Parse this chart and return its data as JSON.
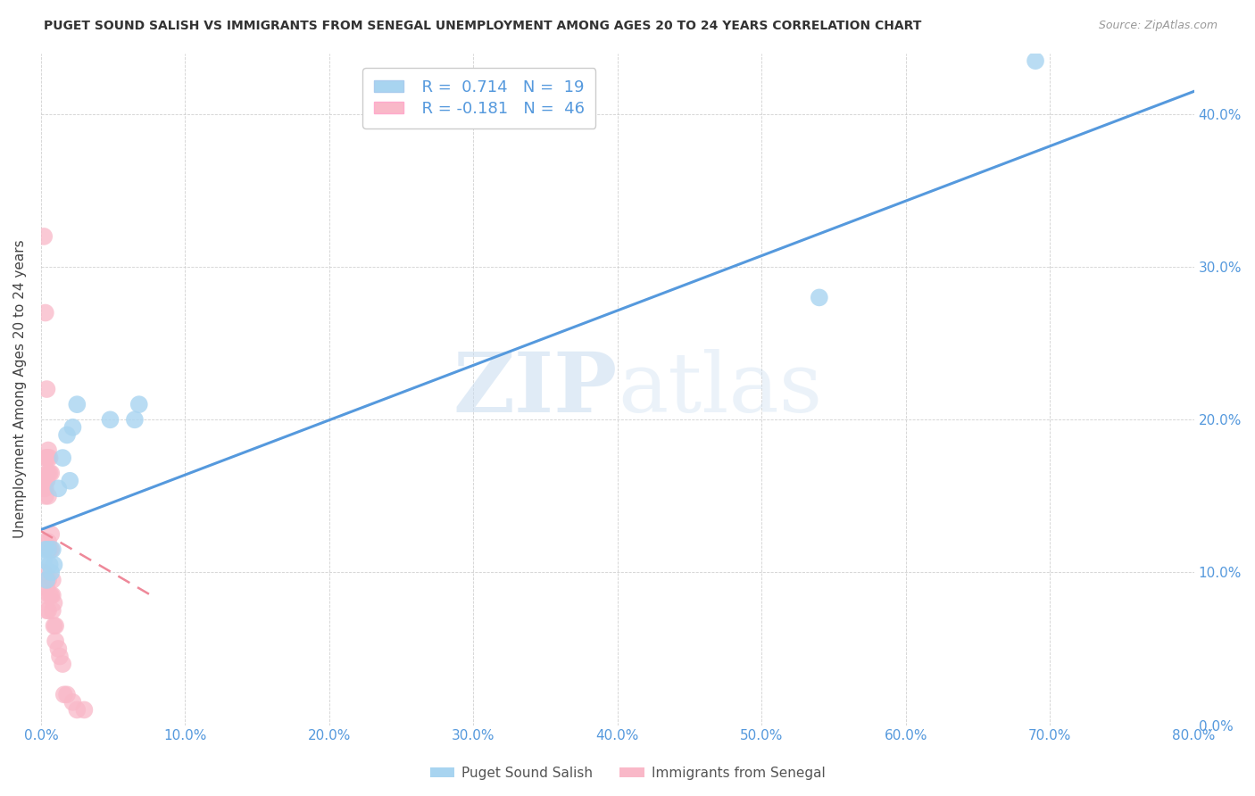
{
  "title": "PUGET SOUND SALISH VS IMMIGRANTS FROM SENEGAL UNEMPLOYMENT AMONG AGES 20 TO 24 YEARS CORRELATION CHART",
  "source": "Source: ZipAtlas.com",
  "xlabel": "",
  "ylabel": "Unemployment Among Ages 20 to 24 years",
  "legend_label1": "Puget Sound Salish",
  "legend_label2": "Immigrants from Senegal",
  "R1": 0.714,
  "N1": 19,
  "R2": -0.181,
  "N2": 46,
  "color1": "#A8D4F0",
  "color2": "#F9B8C8",
  "line_color1": "#5599DD",
  "line_color2": "#EE8899",
  "xmin": 0.0,
  "xmax": 0.8,
  "ymin": 0.0,
  "ymax": 0.44,
  "xticks": [
    0.0,
    0.1,
    0.2,
    0.3,
    0.4,
    0.5,
    0.6,
    0.7,
    0.8
  ],
  "yticks": [
    0.0,
    0.1,
    0.2,
    0.3,
    0.4
  ],
  "blue_line_x0": 0.0,
  "blue_line_y0": 0.128,
  "blue_line_x1": 0.8,
  "blue_line_y1": 0.415,
  "pink_line_x0": 0.0,
  "pink_line_y0": 0.127,
  "pink_line_x1": 0.08,
  "pink_line_y1": 0.083,
  "blue_points_x": [
    0.002,
    0.003,
    0.004,
    0.005,
    0.006,
    0.007,
    0.008,
    0.009,
    0.012,
    0.015,
    0.018,
    0.02,
    0.022,
    0.025,
    0.048,
    0.065,
    0.068,
    0.54,
    0.69
  ],
  "blue_points_y": [
    0.108,
    0.115,
    0.095,
    0.115,
    0.105,
    0.1,
    0.115,
    0.105,
    0.155,
    0.175,
    0.19,
    0.16,
    0.195,
    0.21,
    0.2,
    0.2,
    0.21,
    0.28,
    0.435
  ],
  "pink_points_x": [
    0.002,
    0.002,
    0.002,
    0.003,
    0.003,
    0.003,
    0.003,
    0.003,
    0.003,
    0.003,
    0.004,
    0.004,
    0.004,
    0.004,
    0.004,
    0.004,
    0.005,
    0.005,
    0.005,
    0.005,
    0.005,
    0.005,
    0.005,
    0.006,
    0.006,
    0.006,
    0.006,
    0.007,
    0.007,
    0.007,
    0.007,
    0.008,
    0.008,
    0.008,
    0.009,
    0.009,
    0.01,
    0.01,
    0.012,
    0.013,
    0.015,
    0.016,
    0.018,
    0.022,
    0.025,
    0.03
  ],
  "pink_points_y": [
    0.32,
    0.155,
    0.1,
    0.27,
    0.175,
    0.16,
    0.155,
    0.15,
    0.12,
    0.085,
    0.22,
    0.175,
    0.165,
    0.16,
    0.09,
    0.075,
    0.18,
    0.175,
    0.165,
    0.15,
    0.12,
    0.095,
    0.075,
    0.175,
    0.165,
    0.115,
    0.085,
    0.165,
    0.125,
    0.115,
    0.085,
    0.095,
    0.085,
    0.075,
    0.08,
    0.065,
    0.065,
    0.055,
    0.05,
    0.045,
    0.04,
    0.02,
    0.02,
    0.015,
    0.01,
    0.01
  ],
  "watermark_zip": "ZIP",
  "watermark_atlas": "atlas",
  "background_color": "#FFFFFF"
}
